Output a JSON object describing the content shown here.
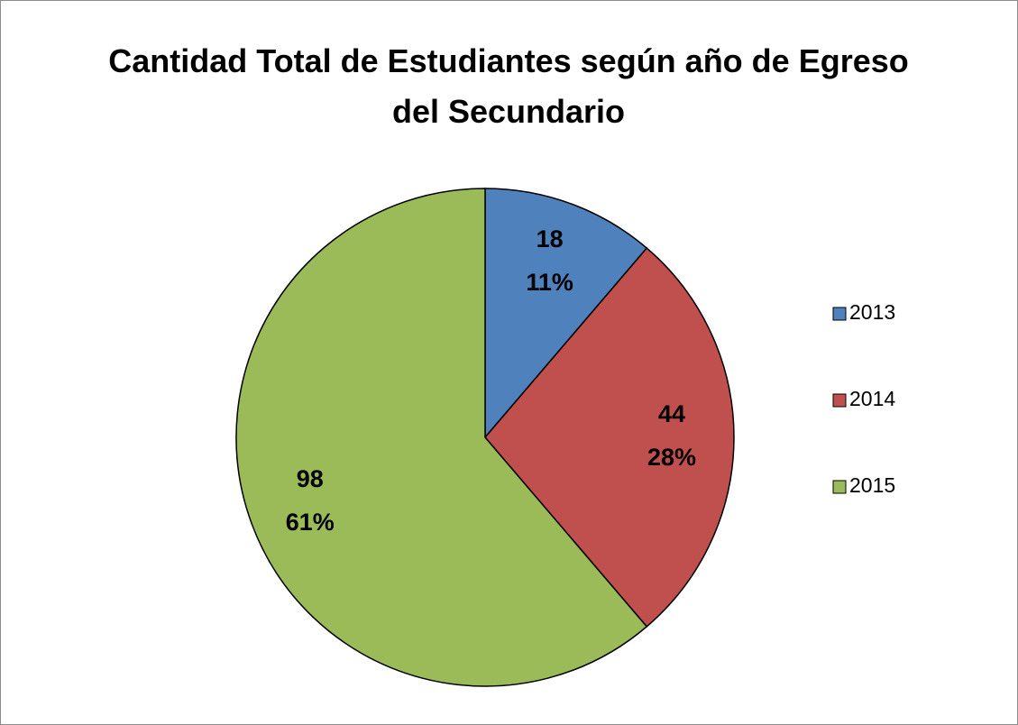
{
  "chart_data": {
    "type": "pie",
    "title": "Cantidad Total de Estudiantes según año de Egreso del Secundario",
    "categories": [
      "2013",
      "2014",
      "2015"
    ],
    "values": [
      18,
      44,
      98
    ],
    "percent_labels": [
      "11%",
      "28%",
      "61%"
    ],
    "colors": [
      "#4f81bd",
      "#c0504d",
      "#9bbb59"
    ],
    "legend": "right"
  }
}
